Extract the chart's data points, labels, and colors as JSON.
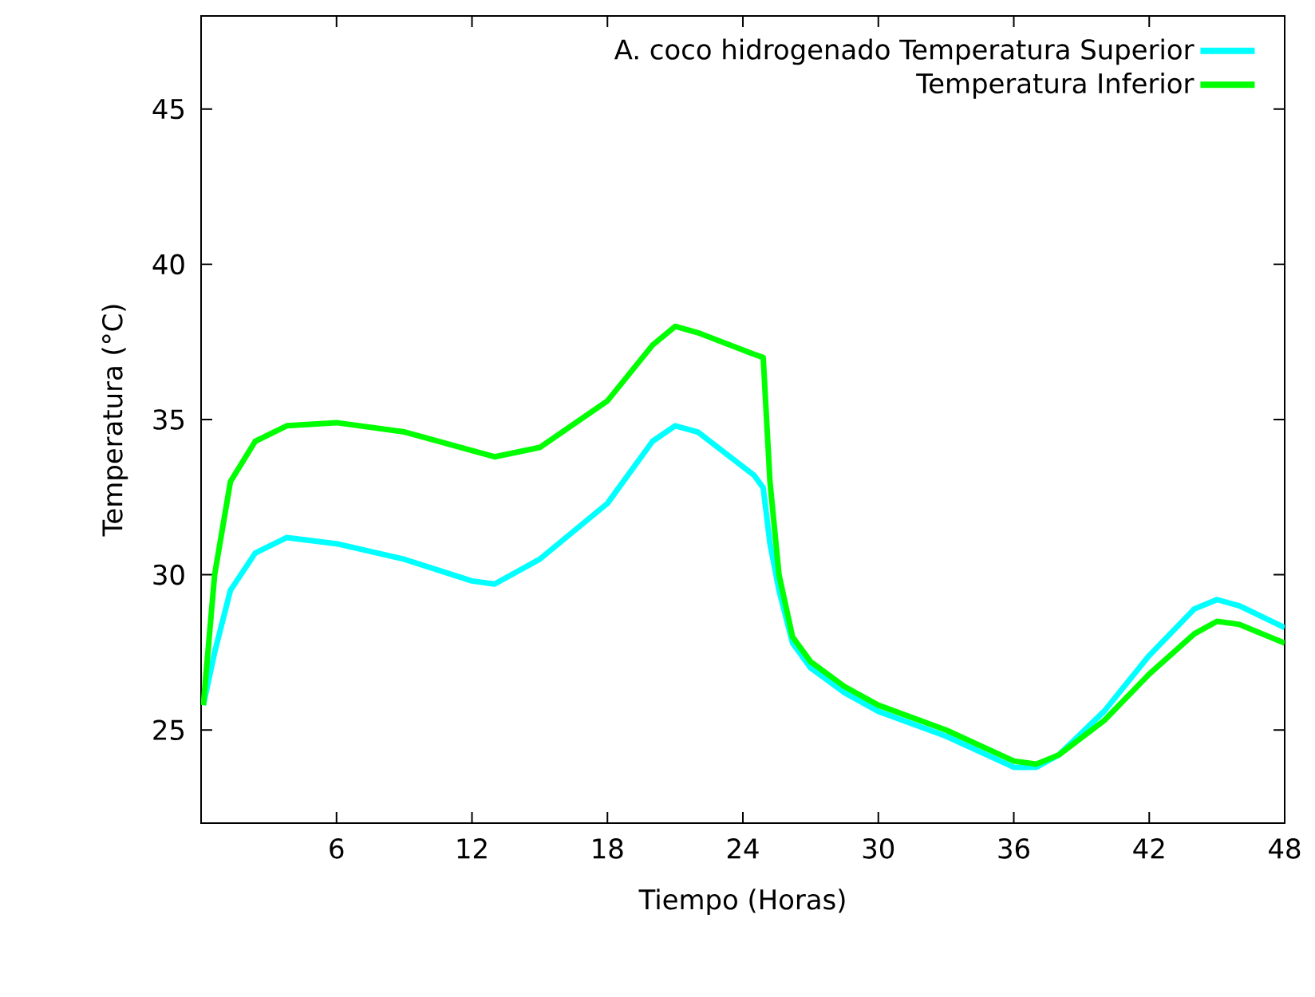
{
  "chart_data": {
    "type": "line",
    "xlabel": "Tiempo (Horas)",
    "ylabel": "Temperatura (°C)",
    "xlim": [
      0,
      48
    ],
    "ylim": [
      22,
      48
    ],
    "xticks": [
      6,
      12,
      18,
      24,
      30,
      36,
      42,
      48
    ],
    "yticks": [
      25,
      30,
      35,
      40,
      45
    ],
    "legend": "top right",
    "grid": false,
    "series": [
      {
        "name": "A. coco hidrogenado Temperatura Superior",
        "color": "#00ffff",
        "x": [
          0.1,
          0.6,
          1.3,
          2.4,
          3.8,
          6,
          9,
          12,
          13,
          15,
          18,
          20,
          21,
          22,
          24.5,
          24.9,
          25.2,
          25.6,
          26.2,
          27,
          28.5,
          30,
          33,
          36,
          37,
          38,
          40,
          42,
          44,
          45,
          46,
          48
        ],
        "values": [
          25.8,
          27.5,
          29.5,
          30.7,
          31.2,
          31.0,
          30.5,
          29.8,
          29.7,
          30.5,
          32.3,
          34.3,
          34.8,
          34.6,
          33.2,
          32.8,
          31,
          29.5,
          27.8,
          27.0,
          26.2,
          25.6,
          24.8,
          23.8,
          23.8,
          24.2,
          25.6,
          27.4,
          28.9,
          29.2,
          29.0,
          28.3
        ]
      },
      {
        "name": "Temperatura Inferior",
        "color": "#00ff00",
        "x": [
          0.1,
          0.6,
          1.3,
          2.4,
          3.8,
          6,
          9,
          12,
          13,
          15,
          18,
          20,
          21,
          22,
          24.5,
          24.9,
          25.2,
          25.6,
          26.2,
          27,
          28.5,
          30,
          33,
          36,
          37,
          38,
          40,
          42,
          44,
          45,
          46,
          48
        ],
        "values": [
          25.8,
          30,
          33,
          34.3,
          34.8,
          34.9,
          34.6,
          34.0,
          33.8,
          34.1,
          35.6,
          37.4,
          38.0,
          37.8,
          37.1,
          37.0,
          33,
          30,
          28,
          27.2,
          26.4,
          25.8,
          25.0,
          24.0,
          23.9,
          24.2,
          25.3,
          26.8,
          28.1,
          28.5,
          28.4,
          27.8
        ]
      }
    ]
  }
}
